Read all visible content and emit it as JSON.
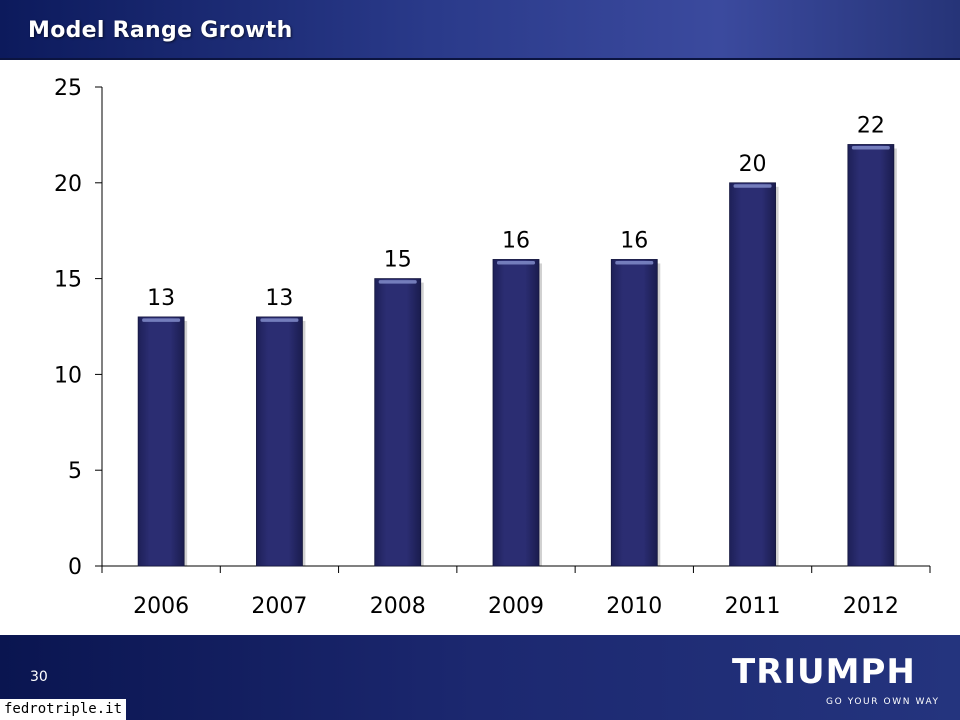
{
  "header": {
    "title": "Model Range Growth"
  },
  "footer": {
    "page_number": "30",
    "logo_text": "TRIUMPH",
    "logo_tagline": "GO YOUR OWN WAY",
    "watermark": "fedrotriple.it"
  },
  "colors": {
    "header_bg": "#1f2f7a",
    "bar": "#2a2c6e",
    "footer_bg": "#16226a"
  },
  "chart_data": {
    "type": "bar",
    "title": "",
    "xlabel": "",
    "ylabel": "",
    "categories": [
      "2006",
      "2007",
      "2008",
      "2009",
      "2010",
      "2011",
      "2012"
    ],
    "values": [
      13,
      13,
      15,
      16,
      16,
      20,
      22
    ],
    "ylim": [
      0,
      25
    ],
    "yticks": [
      0,
      5,
      10,
      15,
      20,
      25
    ],
    "grid": false,
    "legend": "none",
    "data_labels": true
  }
}
